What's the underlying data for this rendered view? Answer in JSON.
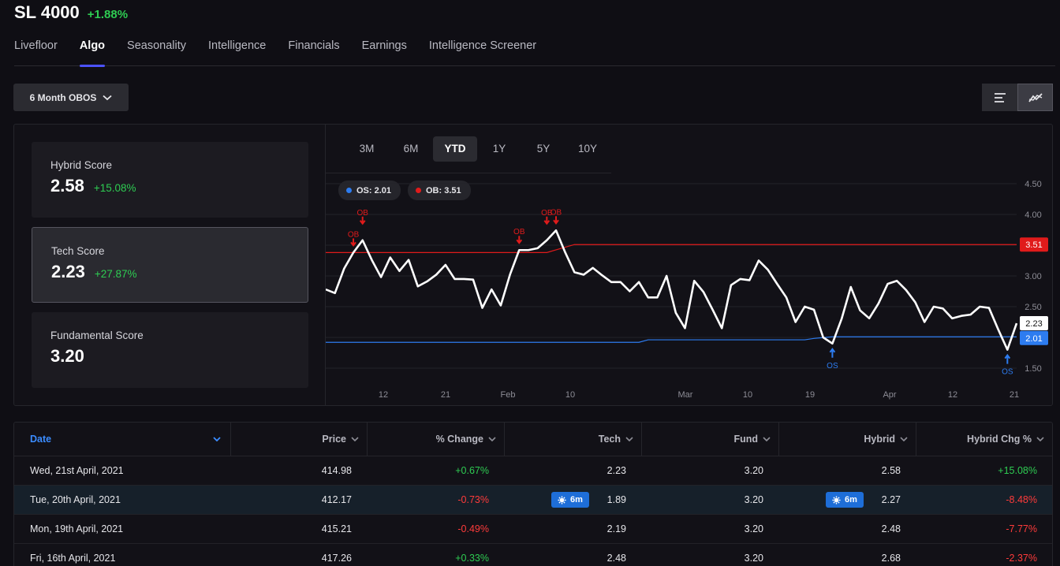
{
  "header": {
    "ticker": "SL 4000",
    "change": "+1.88%"
  },
  "tabs": [
    {
      "label": "Livefloor"
    },
    {
      "label": "Algo"
    },
    {
      "label": "Seasonality"
    },
    {
      "label": "Intelligence"
    },
    {
      "label": "Financials"
    },
    {
      "label": "Earnings"
    },
    {
      "label": "Intelligence Screener"
    }
  ],
  "active_tab": "Algo",
  "dropdown": {
    "label": "6 Month OBOS"
  },
  "scores": [
    {
      "label": "Hybrid Score",
      "value": "2.58",
      "change": "+15.08%"
    },
    {
      "label": "Tech Score",
      "value": "2.23",
      "change": "+27.87%"
    },
    {
      "label": "Fundamental Score",
      "value": "3.20",
      "change": ""
    }
  ],
  "ranges": [
    "3M",
    "6M",
    "YTD",
    "1Y",
    "5Y",
    "10Y"
  ],
  "active_range": "YTD",
  "legend": {
    "os": "OS: 2.01",
    "ob": "OB: 3.51"
  },
  "colors": {
    "positive": "#2ecc52",
    "negative": "#ff3b3b",
    "accent": "#4b52ff",
    "ob_line": "#e01b1b",
    "os_line": "#2d7cf0",
    "score_line": "#ffffff"
  },
  "chart_data": {
    "type": "line",
    "ylim": [
      1.5,
      4.5
    ],
    "y_ticks": [
      "4.50",
      "4.00",
      "3.50",
      "3.00",
      "2.50",
      "2.00",
      "1.50"
    ],
    "x_tick_labels": [
      "12",
      "21",
      "Feb",
      "10",
      "Mar",
      "10",
      "19",
      "Apr",
      "12",
      "21"
    ],
    "series": [
      {
        "values": [
          2.78,
          2.72,
          3.12,
          3.38,
          3.58,
          3.26,
          2.98,
          3.3,
          3.08,
          3.26,
          2.83,
          2.91,
          3.02,
          3.18,
          2.95,
          2.95,
          2.94,
          2.48,
          2.78,
          2.52,
          3.02,
          3.42,
          3.42,
          3.45,
          3.58,
          3.74,
          3.38,
          3.06,
          3.02,
          3.13,
          3.01,
          2.9,
          2.9,
          2.75,
          2.9,
          2.65,
          2.65,
          3.0,
          2.4,
          2.15,
          2.92,
          2.74,
          2.45,
          2.15,
          2.85,
          2.95,
          2.93,
          3.25,
          3.1,
          2.87,
          2.65,
          2.25,
          2.5,
          2.45,
          2.0,
          1.9,
          2.3,
          2.82,
          2.44,
          2.31,
          2.55,
          2.87,
          2.92,
          2.77,
          2.57,
          2.25,
          2.5,
          2.47,
          2.31,
          2.35,
          2.37,
          2.5,
          2.48,
          2.13,
          1.8,
          2.23
        ]
      }
    ],
    "ob_threshold": {
      "label": "3.51",
      "start": 3.38,
      "end": 3.51
    },
    "os_threshold": {
      "label": "2.01",
      "start": 1.92,
      "end": 2.01
    },
    "current_label": "2.23",
    "signals": [
      {
        "text": "OB",
        "index": 3
      },
      {
        "text": "OB",
        "index": 4
      },
      {
        "text": "OB",
        "index": 21
      },
      {
        "text": "OB",
        "index": 24
      },
      {
        "text": "OB",
        "index": 25
      },
      {
        "text": "OS",
        "index": 55
      },
      {
        "text": "OS",
        "index": 74
      }
    ]
  },
  "table": {
    "columns": [
      "Date",
      "Price",
      "% Change",
      "Tech",
      "Fund",
      "Hybrid",
      "Hybrid Chg %"
    ],
    "badge": "6m",
    "rows": [
      {
        "date": "Wed, 21st April, 2021",
        "price": "414.98",
        "chg": "+0.67%",
        "tech": "2.23",
        "fund": "3.20",
        "hybrid": "2.58",
        "hchg": "+15.08%"
      },
      {
        "date": "Tue, 20th April, 2021",
        "price": "412.17",
        "chg": "-0.73%",
        "tech": "1.89",
        "fund": "3.20",
        "hybrid": "2.27",
        "hchg": "-8.48%"
      },
      {
        "date": "Mon, 19th April, 2021",
        "price": "415.21",
        "chg": "-0.49%",
        "tech": "2.19",
        "fund": "3.20",
        "hybrid": "2.48",
        "hchg": "-7.77%"
      },
      {
        "date": "Fri, 16th April, 2021",
        "price": "417.26",
        "chg": "+0.33%",
        "tech": "2.48",
        "fund": "3.20",
        "hybrid": "2.68",
        "hchg": "-2.37%"
      }
    ]
  }
}
